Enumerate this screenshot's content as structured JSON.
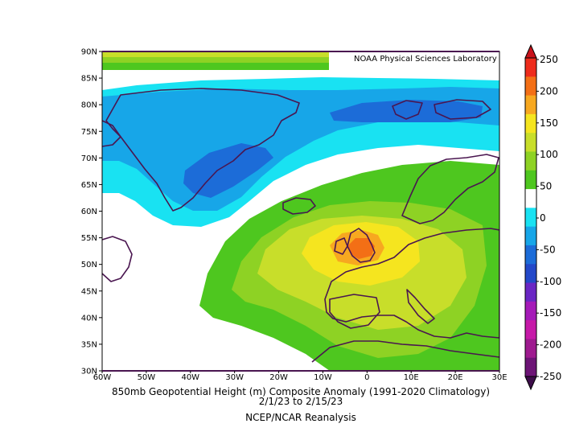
{
  "chart_data": {
    "type": "map",
    "credit": "NOAA Physical Sciences Laboratory",
    "title_line1": "850mb Geopotential Height (m) Composite Anomaly (1991-2020 Climatology)",
    "title_line2": "2/1/23 to 2/15/23",
    "source": "NCEP/NCAR Reanalysis",
    "lat_labels": [
      "90N",
      "85N",
      "80N",
      "75N",
      "70N",
      "65N",
      "60N",
      "55N",
      "50N",
      "45N",
      "40N",
      "35N",
      "30N"
    ],
    "lon_labels": [
      "60W",
      "50W",
      "40W",
      "30W",
      "20W",
      "10W",
      "0",
      "10E",
      "20E",
      "30E"
    ],
    "lat_range": [
      30,
      90
    ],
    "lon_range": [
      -60,
      30
    ],
    "colorbar": {
      "levels": [
        "250",
        "200",
        "150",
        "100",
        "50",
        "0",
        "-50",
        "-100",
        "-150",
        "-200",
        "-250"
      ],
      "colors": [
        "#ee2c1c",
        "#f36f16",
        "#f7a820",
        "#f5e51f",
        "#c8de2a",
        "#8ed224",
        "#4ec71f",
        "#ffffff",
        "#19e2f2",
        "#17a6e8",
        "#1c6cd8",
        "#2348c9",
        "#6a26c4",
        "#a51ab8",
        "#c619a8",
        "#9e1a8f",
        "#6d1476"
      ]
    },
    "features": [
      {
        "name": "positive anomaly center",
        "location": "British Isles / North Sea",
        "max_approx": 200
      },
      {
        "name": "negative anomaly trough",
        "location": "Greenland / Iceland",
        "min_approx": -100
      },
      {
        "name": "negative anomaly band",
        "location": "Arctic north of Scandinavia",
        "min_approx": -100
      }
    ]
  }
}
